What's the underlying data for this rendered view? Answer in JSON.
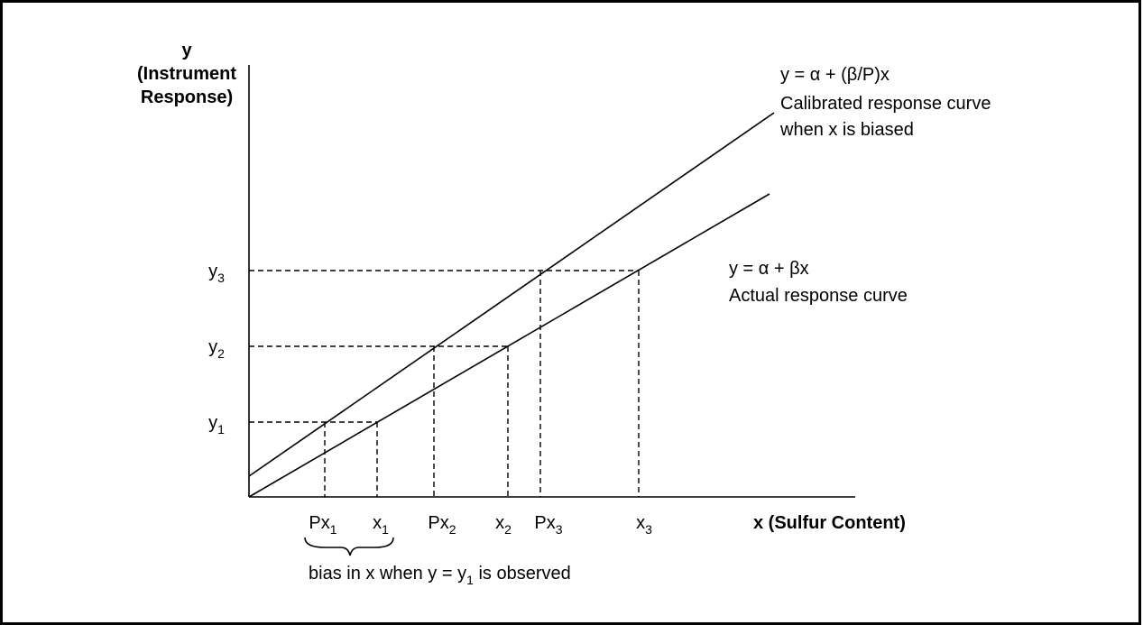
{
  "axis_title_y": [
    "y",
    "(Instrument",
    "Response)"
  ],
  "axis_title_x": "x (Sulfur Content)",
  "calibrated_curve": {
    "equation": "y = α + (β/P)x",
    "lines": [
      "Calibrated response curve",
      "when x is biased"
    ]
  },
  "actual_curve": {
    "equation": "y = α + βx",
    "lines": [
      "Actual response curve"
    ]
  },
  "y_labels": [
    {
      "base": "y",
      "sub": "3"
    },
    {
      "base": "y",
      "sub": "2"
    },
    {
      "base": "y",
      "sub": "1"
    }
  ],
  "x_labels": [
    {
      "base": "Px",
      "sub": "1"
    },
    {
      "base": "x",
      "sub": "1"
    },
    {
      "base": "Px",
      "sub": "2"
    },
    {
      "base": "x",
      "sub": "2"
    },
    {
      "base": "Px",
      "sub": "3"
    },
    {
      "base": "x",
      "sub": "3"
    }
  ],
  "caption": {
    "before": "bias in x when y = y",
    "sub": "1",
    "after": " is observed"
  }
}
